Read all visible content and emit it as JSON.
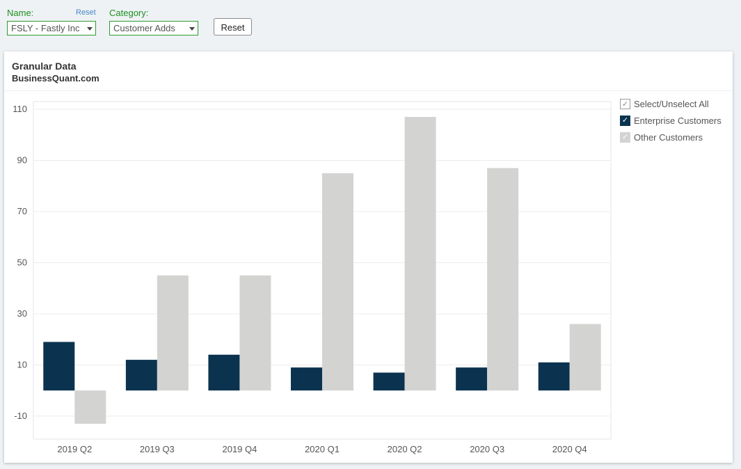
{
  "filters": {
    "name_label": "Name:",
    "name_reset": "Reset",
    "name_value": "FSLY - Fastly Inc",
    "category_label": "Category:",
    "category_value": "Customer Adds",
    "reset_button": "Reset"
  },
  "panel": {
    "title": "Granular Data",
    "subtitle": "BusinessQuant.com"
  },
  "legend": {
    "select_all": "Select/Unselect All",
    "items": [
      {
        "label": "Enterprise Customers",
        "color": "#0b3350",
        "checked": true
      },
      {
        "label": "Other Customers",
        "color": "#d3d3d2",
        "checked": true
      }
    ]
  },
  "chart_data": {
    "type": "bar",
    "categories": [
      "2019 Q2",
      "2019 Q3",
      "2019 Q4",
      "2020 Q1",
      "2020 Q2",
      "2020 Q3",
      "2020 Q4"
    ],
    "series": [
      {
        "name": "Enterprise Customers",
        "color": "#0b3350",
        "values": [
          19,
          12,
          14,
          9,
          7,
          9,
          11
        ]
      },
      {
        "name": "Other Customers",
        "color": "#d3d3d2",
        "values": [
          -13,
          45,
          45,
          85,
          107,
          87,
          26
        ]
      }
    ],
    "yticks": [
      -10,
      10,
      30,
      50,
      70,
      90,
      110
    ],
    "ylim": [
      -19,
      113
    ],
    "grid": true,
    "legend_position": "right"
  }
}
